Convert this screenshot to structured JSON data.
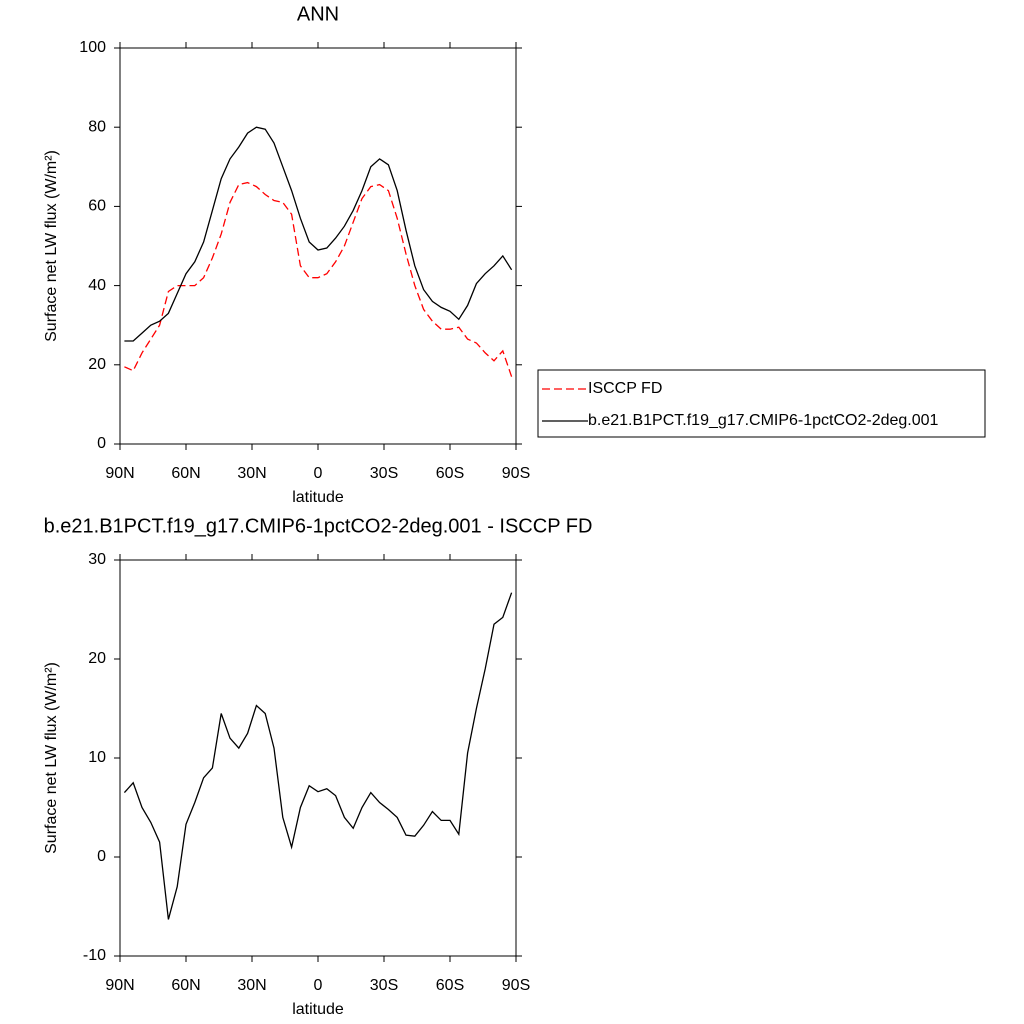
{
  "chart_data": [
    {
      "type": "line",
      "title": "ANN",
      "xlabel": "latitude",
      "ylabel": "Surface net LW flux (W/m²)",
      "xlim": [
        90,
        -90
      ],
      "xticks": [
        {
          "value": 90,
          "label": "90N"
        },
        {
          "value": 60,
          "label": "60N"
        },
        {
          "value": 30,
          "label": "30N"
        },
        0,
        {
          "value": -30,
          "label": "30S"
        },
        {
          "value": -60,
          "label": "60S"
        },
        {
          "value": -90,
          "label": "90S"
        }
      ],
      "ylim": [
        0,
        100
      ],
      "yticks": [
        0,
        20,
        40,
        60,
        80,
        100
      ],
      "legend": "right",
      "x": [
        88,
        84,
        80,
        76,
        72,
        68,
        64,
        60,
        56,
        52,
        48,
        44,
        40,
        36,
        32,
        28,
        24,
        20,
        16,
        12,
        8,
        4,
        0,
        -4,
        -8,
        -12,
        -16,
        -20,
        -24,
        -28,
        -32,
        -36,
        -40,
        -44,
        -48,
        -52,
        -56,
        -60,
        -64,
        -68,
        -72,
        -76,
        -80,
        -84,
        -88
      ],
      "series": [
        {
          "name": "ISCCP FD",
          "color": "#ff0000",
          "dashed": true,
          "values": [
            19.5,
            18.5,
            23,
            26.5,
            30,
            38.5,
            40,
            40,
            40,
            42,
            47,
            53,
            61,
            65.5,
            66,
            65,
            63,
            61.5,
            61,
            58,
            45,
            42,
            42,
            43,
            46,
            50,
            56,
            62,
            65,
            65.5,
            64,
            57,
            48,
            40,
            34,
            31,
            29,
            29,
            29.5,
            26.5,
            25.5,
            23,
            21,
            23.5,
            17
          ]
        },
        {
          "name": "b.e21.B1PCT.f19_g17.CMIP6-1pctCO2-2deg.001",
          "color": "#000000",
          "dashed": false,
          "values": [
            26,
            26,
            28,
            30,
            31,
            33,
            38,
            43,
            46,
            51,
            59,
            67,
            72,
            75,
            78.5,
            80,
            79.5,
            76,
            70,
            64,
            57,
            51,
            49,
            49.5,
            52,
            55,
            59,
            64,
            70,
            72,
            70.5,
            64,
            54,
            45,
            39,
            36,
            34.5,
            33.5,
            31.5,
            35,
            40.5,
            43,
            45,
            47.5,
            44
          ]
        }
      ]
    },
    {
      "type": "line",
      "title": "b.e21.B1PCT.f19_g17.CMIP6-1pctCO2-2deg.001 - ISCCP FD",
      "xlabel": "latitude",
      "ylabel": "Surface net LW flux (W/m²)",
      "xlim": [
        90,
        -90
      ],
      "xticks": [
        {
          "value": 90,
          "label": "90N"
        },
        {
          "value": 60,
          "label": "60N"
        },
        {
          "value": 30,
          "label": "30N"
        },
        0,
        {
          "value": -30,
          "label": "30S"
        },
        {
          "value": -60,
          "label": "60S"
        },
        {
          "value": -90,
          "label": "90S"
        }
      ],
      "ylim": [
        -10,
        30
      ],
      "yticks": [
        -10,
        0,
        10,
        20,
        30
      ],
      "x": [
        88,
        84,
        80,
        76,
        72,
        68,
        64,
        60,
        56,
        52,
        48,
        44,
        40,
        36,
        32,
        28,
        24,
        20,
        16,
        12,
        8,
        4,
        0,
        -4,
        -8,
        -12,
        -16,
        -20,
        -24,
        -28,
        -32,
        -36,
        -40,
        -44,
        -48,
        -52,
        -56,
        -60,
        -64,
        -68,
        -72,
        -76,
        -80,
        -84,
        -88
      ],
      "series": [
        {
          "color": "#000000",
          "dashed": false,
          "values": [
            6.5,
            7.5,
            5,
            3.5,
            1.5,
            -6.3,
            -3,
            3.3,
            5.5,
            8,
            9,
            14.5,
            12,
            11,
            12.5,
            15.3,
            14.5,
            11,
            4,
            1,
            5,
            7.2,
            6.6,
            6.9,
            6.2,
            4,
            2.9,
            5,
            6.5,
            5.5,
            4.8,
            4,
            2.2,
            2.1,
            3.2,
            4.6,
            3.7,
            3.7,
            2.3,
            10.5,
            15,
            19,
            23.5,
            24.2,
            26.7
          ]
        }
      ]
    }
  ]
}
